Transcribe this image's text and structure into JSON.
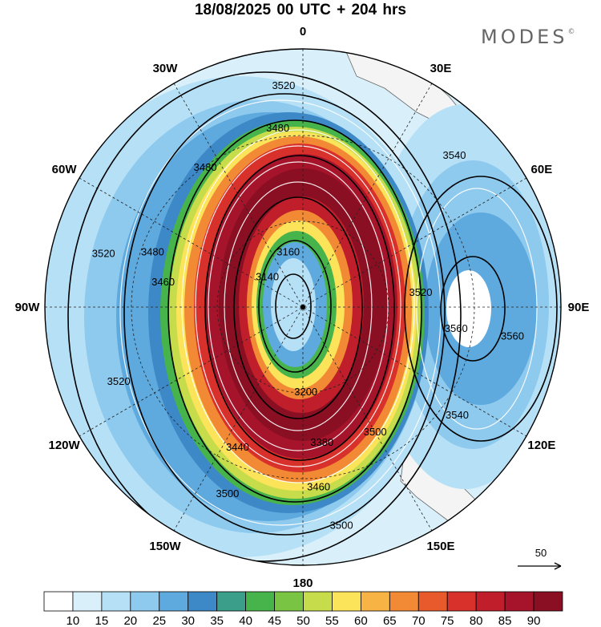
{
  "header": {
    "title": "18/08/2025  00 UTC  + 204 hrs",
    "brand": "MODES",
    "brand_mark": "©"
  },
  "map": {
    "projection": "polar-stereographic",
    "hemisphere": "south",
    "lon_labels": [
      {
        "text": "0",
        "lon": 0
      },
      {
        "text": "30E",
        "lon": 30
      },
      {
        "text": "60E",
        "lon": 60
      },
      {
        "text": "90E",
        "lon": 90
      },
      {
        "text": "120E",
        "lon": 120
      },
      {
        "text": "150E",
        "lon": 150
      },
      {
        "text": "180",
        "lon": 180
      },
      {
        "text": "150W",
        "lon": -150
      },
      {
        "text": "120W",
        "lon": -120
      },
      {
        "text": "90W",
        "lon": -90
      },
      {
        "text": "60W",
        "lon": -60
      },
      {
        "text": "30W",
        "lon": -30
      }
    ],
    "contour_labels": [
      {
        "text": "3520",
        "lon": -5,
        "colat": 0.86
      },
      {
        "text": "3480",
        "lon": -8,
        "colat": 0.7
      },
      {
        "text": "3480",
        "lon": -35,
        "colat": 0.66
      },
      {
        "text": "3540",
        "lon": 45,
        "colat": 0.83
      },
      {
        "text": "3520",
        "lon": -75,
        "colat": 0.8
      },
      {
        "text": "3480",
        "lon": -70,
        "colat": 0.62
      },
      {
        "text": "3460",
        "lon": -80,
        "colat": 0.55
      },
      {
        "text": "3160",
        "lon": -15,
        "colat": 0.22
      },
      {
        "text": "3140",
        "lon": -50,
        "colat": 0.18
      },
      {
        "text": "3560",
        "lon": 98,
        "colat": 0.82
      },
      {
        "text": "3520",
        "lon": 83,
        "colat": 0.46
      },
      {
        "text": "3560",
        "lon": 98,
        "colat": 0.6
      },
      {
        "text": "3520",
        "lon": -112,
        "colat": 0.77
      },
      {
        "text": "3200",
        "lon": 178,
        "colat": 0.33
      },
      {
        "text": "3380",
        "lon": 172,
        "colat": 0.53
      },
      {
        "text": "3440",
        "lon": -155,
        "colat": 0.6
      },
      {
        "text": "3460",
        "lon": 175,
        "colat": 0.7
      },
      {
        "text": "3500",
        "lon": -158,
        "colat": 0.78
      },
      {
        "text": "3500",
        "lon": 170,
        "colat": 0.86
      },
      {
        "text": "3540",
        "lon": 125,
        "colat": 0.73
      },
      {
        "text": "3500",
        "lon": 150,
        "colat": 0.56
      }
    ],
    "vector_key": {
      "value": "50"
    }
  },
  "colorbar": {
    "levels": [
      10,
      15,
      20,
      25,
      30,
      35,
      40,
      45,
      50,
      55,
      60,
      65,
      70,
      75,
      80,
      85,
      90
    ],
    "colors": [
      "#ffffff",
      "#d9f0fb",
      "#b6e0f6",
      "#8ec9ee",
      "#5ea9dd",
      "#3d88c6",
      "#3a9e8a",
      "#47b34b",
      "#7ac443",
      "#c6dc4a",
      "#fbe35a",
      "#f7b445",
      "#f28a35",
      "#e85a2b",
      "#d8302a",
      "#c01e2a",
      "#a5142a",
      "#8a0f22"
    ]
  }
}
